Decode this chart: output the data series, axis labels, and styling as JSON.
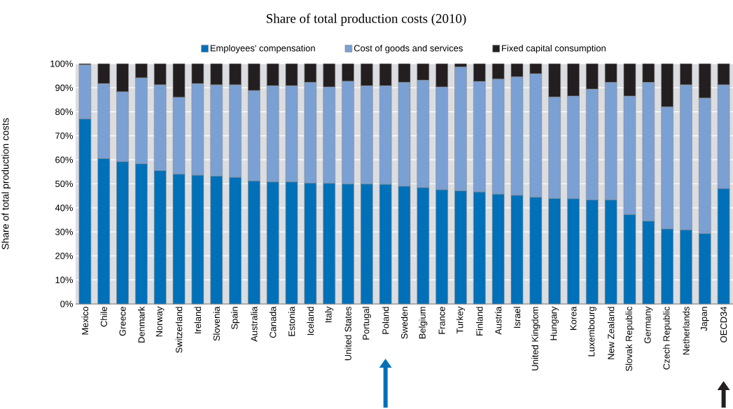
{
  "chart_data": {
    "type": "bar",
    "stacked": true,
    "title": "Share of total production costs (2010)",
    "ylabel": "Share of total production costs",
    "categories": [
      "Mexico",
      "Chile",
      "Greece",
      "Denmark",
      "Norway",
      "Switzerland",
      "Ireland",
      "Slovenia",
      "Spain",
      "Australia",
      "Canada",
      "Estonia",
      "Iceland",
      "Italy",
      "United States",
      "Portugal",
      "Poland",
      "Sweden",
      "Belgium",
      "France",
      "Turkey",
      "Finland",
      "Austria",
      "Israel",
      "United Kingdom",
      "Hungary",
      "Korea",
      "Luxembourg",
      "New Zealand",
      "Slovak Republic",
      "Germany",
      "Czech Republic",
      "Netherlands",
      "Japan",
      "OECD34"
    ],
    "series": [
      {
        "name": "Employees' compensation",
        "color": "#0070b8",
        "values": [
          77,
          60.5,
          59.2,
          58.3,
          55.5,
          54,
          53.6,
          53.2,
          52.7,
          51.2,
          50.8,
          50.8,
          50.3,
          50.2,
          49.9,
          49.9,
          49.8,
          49,
          48.4,
          47.5,
          47.1,
          46.6,
          45.7,
          45.2,
          44.4,
          43.9,
          43.8,
          43.3,
          43.3,
          37.2,
          34.5,
          31.2,
          30.8,
          29.3,
          48
        ]
      },
      {
        "name": "Cost of goods and services",
        "color": "#7ba0d3",
        "values": [
          22.5,
          31.2,
          29.1,
          35.8,
          35.7,
          32,
          38.1,
          38,
          38.5,
          37.6,
          40,
          40,
          41.9,
          40.1,
          42.8,
          40.9,
          41,
          43.2,
          44.7,
          42.8,
          51.5,
          46,
          47.9,
          49.3,
          51.4,
          42.2,
          42.7,
          46.1,
          48.9,
          49.3,
          57.7,
          50.8,
          60.4,
          56.4,
          43.2
        ]
      },
      {
        "name": "Fixed capital consumption",
        "color": "#231f20",
        "values": [
          0.5,
          8.3,
          11.7,
          5.9,
          8.8,
          14,
          8.3,
          8.8,
          8.8,
          11.2,
          9.2,
          9.2,
          7.8,
          9.7,
          7.3,
          9.2,
          9.2,
          7.8,
          6.9,
          9.7,
          1.4,
          7.4,
          6.4,
          5.5,
          4.2,
          13.9,
          13.5,
          10.6,
          7.8,
          13.5,
          7.8,
          18,
          8.8,
          14.3,
          8.8
        ]
      }
    ],
    "ylim": [
      0,
      100
    ],
    "yticks": [
      {
        "value": 0,
        "label": "0%"
      },
      {
        "value": 10,
        "label": "10%"
      },
      {
        "value": 20,
        "label": "20%"
      },
      {
        "value": 30,
        "label": "30%"
      },
      {
        "value": 40,
        "label": "40%"
      },
      {
        "value": 50,
        "label": "50%"
      },
      {
        "value": 60,
        "label": "60%"
      },
      {
        "value": 70,
        "label": "70%"
      },
      {
        "value": 80,
        "label": "80%"
      },
      {
        "value": 90,
        "label": "90%"
      },
      {
        "value": 100,
        "label": "100%"
      }
    ],
    "grid": "y",
    "legend": "top"
  }
}
